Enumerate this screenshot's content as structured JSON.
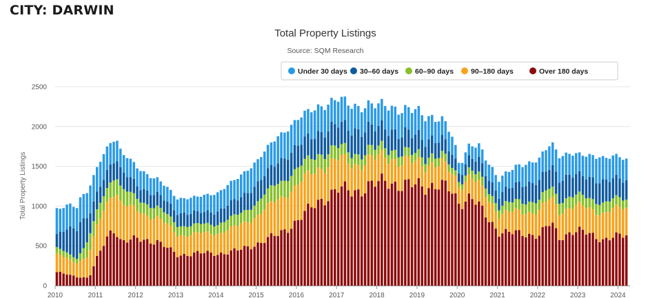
{
  "page": {
    "heading": "CITY: DARWIN"
  },
  "chart_data": {
    "type": "bar",
    "stacked": true,
    "title": "Total Property Listings",
    "subtitle": "Source: SQM Research",
    "ylabel": "Total Property Listings",
    "xlabel": "",
    "ylim": [
      0,
      2500
    ],
    "yticks": [
      0,
      500,
      1000,
      1500,
      2000,
      2500
    ],
    "xlim": [
      2010,
      2024.3
    ],
    "xticks": [
      "2010",
      "2011",
      "2012",
      "2013",
      "2014",
      "2015",
      "2016",
      "2017",
      "2018",
      "2019",
      "2020",
      "2021",
      "2022",
      "2023",
      "2024"
    ],
    "grid": true,
    "legend_position": "top-right",
    "frequency": "monthly",
    "start": "2010-01",
    "end": "2024-03",
    "colors": {
      "Under 30 days": "#2a9ae6",
      "30–60 days": "#0f5aa0",
      "60–90 days": "#86bf2a",
      "90–180 days": "#f7a31c",
      "Over 180 days": "#8c0b0b"
    },
    "series_order": [
      "Over 180 days",
      "90–180 days",
      "60–90 days",
      "30–60 days",
      "Under 30 days"
    ],
    "legend": [
      "Under 30 days",
      "30–60 days",
      "60–90 days",
      "90–180 days",
      "Over 180 days"
    ],
    "anchors": {
      "Over 180 days": [
        [
          2010.0,
          170
        ],
        [
          2010.5,
          110
        ],
        [
          2010.8,
          100
        ],
        [
          2011.0,
          340
        ],
        [
          2011.3,
          650
        ],
        [
          2011.45,
          720
        ],
        [
          2011.6,
          560
        ],
        [
          2012.0,
          580
        ],
        [
          2012.5,
          560
        ],
        [
          2013.0,
          380
        ],
        [
          2013.5,
          410
        ],
        [
          2014.0,
          400
        ],
        [
          2014.5,
          440
        ],
        [
          2015.0,
          530
        ],
        [
          2015.5,
          640
        ],
        [
          2016.0,
          820
        ],
        [
          2016.5,
          1060
        ],
        [
          2017.0,
          1200
        ],
        [
          2017.5,
          1200
        ],
        [
          2018.0,
          1280
        ],
        [
          2018.2,
          1340
        ],
        [
          2018.6,
          1240
        ],
        [
          2019.0,
          1270
        ],
        [
          2019.5,
          1250
        ],
        [
          2019.8,
          1200
        ],
        [
          2020.0,
          1050
        ],
        [
          2020.3,
          1120
        ],
        [
          2020.6,
          920
        ],
        [
          2021.0,
          680
        ],
        [
          2021.5,
          650
        ],
        [
          2022.0,
          640
        ],
        [
          2022.3,
          790
        ],
        [
          2022.5,
          600
        ],
        [
          2022.8,
          680
        ],
        [
          2023.0,
          680
        ],
        [
          2023.3,
          640
        ],
        [
          2023.6,
          580
        ],
        [
          2024.0,
          620
        ],
        [
          2024.25,
          640
        ]
      ],
      "90–180 days": [
        [
          2010.0,
          220
        ],
        [
          2010.5,
          180
        ],
        [
          2010.8,
          280
        ],
        [
          2011.0,
          400
        ],
        [
          2011.3,
          440
        ],
        [
          2011.5,
          510
        ],
        [
          2012.0,
          350
        ],
        [
          2012.5,
          300
        ],
        [
          2013.0,
          260
        ],
        [
          2013.5,
          240
        ],
        [
          2014.0,
          260
        ],
        [
          2014.5,
          300
        ],
        [
          2015.0,
          360
        ],
        [
          2015.5,
          440
        ],
        [
          2016.0,
          450
        ],
        [
          2016.5,
          420
        ],
        [
          2017.0,
          380
        ],
        [
          2017.5,
          330
        ],
        [
          2018.0,
          320
        ],
        [
          2018.5,
          300
        ],
        [
          2019.0,
          280
        ],
        [
          2019.5,
          270
        ],
        [
          2019.8,
          240
        ],
        [
          2020.0,
          230
        ],
        [
          2020.3,
          250
        ],
        [
          2020.6,
          270
        ],
        [
          2021.0,
          220
        ],
        [
          2021.5,
          280
        ],
        [
          2022.0,
          300
        ],
        [
          2022.5,
          330
        ],
        [
          2023.0,
          310
        ],
        [
          2023.5,
          330
        ],
        [
          2024.0,
          350
        ],
        [
          2024.25,
          340
        ]
      ],
      "60–90 days": [
        [
          2010.0,
          80
        ],
        [
          2010.5,
          60
        ],
        [
          2010.8,
          200
        ],
        [
          2011.0,
          190
        ],
        [
          2011.5,
          200
        ],
        [
          2012.0,
          150
        ],
        [
          2012.5,
          130
        ],
        [
          2013.0,
          120
        ],
        [
          2013.5,
          110
        ],
        [
          2014.0,
          120
        ],
        [
          2014.5,
          140
        ],
        [
          2015.0,
          170
        ],
        [
          2015.5,
          210
        ],
        [
          2016.0,
          200
        ],
        [
          2016.5,
          180
        ],
        [
          2017.0,
          150
        ],
        [
          2017.5,
          130
        ],
        [
          2018.0,
          120
        ],
        [
          2018.5,
          110
        ],
        [
          2019.0,
          110
        ],
        [
          2019.5,
          100
        ],
        [
          2019.8,
          90
        ],
        [
          2020.0,
          60
        ],
        [
          2020.5,
          110
        ],
        [
          2021.0,
          100
        ],
        [
          2021.5,
          130
        ],
        [
          2022.0,
          130
        ],
        [
          2022.5,
          140
        ],
        [
          2023.0,
          130
        ],
        [
          2023.5,
          130
        ],
        [
          2024.0,
          120
        ],
        [
          2024.25,
          110
        ]
      ],
      "30–60 days": [
        [
          2010.0,
          160
        ],
        [
          2010.3,
          340
        ],
        [
          2010.6,
          380
        ],
        [
          2010.8,
          270
        ],
        [
          2011.0,
          220
        ],
        [
          2011.5,
          220
        ],
        [
          2012.0,
          170
        ],
        [
          2012.5,
          160
        ],
        [
          2013.0,
          160
        ],
        [
          2013.5,
          150
        ],
        [
          2014.0,
          160
        ],
        [
          2014.5,
          200
        ],
        [
          2015.0,
          230
        ],
        [
          2015.5,
          270
        ],
        [
          2016.0,
          280
        ],
        [
          2016.5,
          270
        ],
        [
          2017.0,
          280
        ],
        [
          2017.5,
          300
        ],
        [
          2018.0,
          250
        ],
        [
          2018.5,
          240
        ],
        [
          2019.0,
          230
        ],
        [
          2019.5,
          200
        ],
        [
          2019.8,
          180
        ],
        [
          2020.0,
          110
        ],
        [
          2020.5,
          180
        ],
        [
          2021.0,
          150
        ],
        [
          2021.5,
          220
        ],
        [
          2022.0,
          240
        ],
        [
          2022.5,
          280
        ],
        [
          2023.0,
          250
        ],
        [
          2023.5,
          270
        ],
        [
          2024.0,
          250
        ],
        [
          2024.25,
          230
        ]
      ],
      "Under 30 days": [
        [
          2010.0,
          330
        ],
        [
          2010.5,
          270
        ],
        [
          2010.8,
          340
        ],
        [
          2011.0,
          340
        ],
        [
          2011.5,
          240
        ],
        [
          2012.0,
          230
        ],
        [
          2012.5,
          190
        ],
        [
          2013.0,
          180
        ],
        [
          2013.5,
          200
        ],
        [
          2014.0,
          230
        ],
        [
          2014.5,
          270
        ],
        [
          2015.0,
          290
        ],
        [
          2015.5,
          320
        ],
        [
          2016.0,
          340
        ],
        [
          2016.5,
          330
        ],
        [
          2017.0,
          320
        ],
        [
          2017.5,
          300
        ],
        [
          2018.0,
          280
        ],
        [
          2018.5,
          300
        ],
        [
          2019.0,
          310
        ],
        [
          2019.5,
          260
        ],
        [
          2019.8,
          230
        ],
        [
          2020.0,
          130
        ],
        [
          2020.5,
          180
        ],
        [
          2021.0,
          200
        ],
        [
          2021.5,
          230
        ],
        [
          2022.0,
          280
        ],
        [
          2022.5,
          290
        ],
        [
          2023.0,
          260
        ],
        [
          2023.5,
          300
        ],
        [
          2024.0,
          280
        ],
        [
          2024.25,
          250
        ]
      ]
    }
  }
}
